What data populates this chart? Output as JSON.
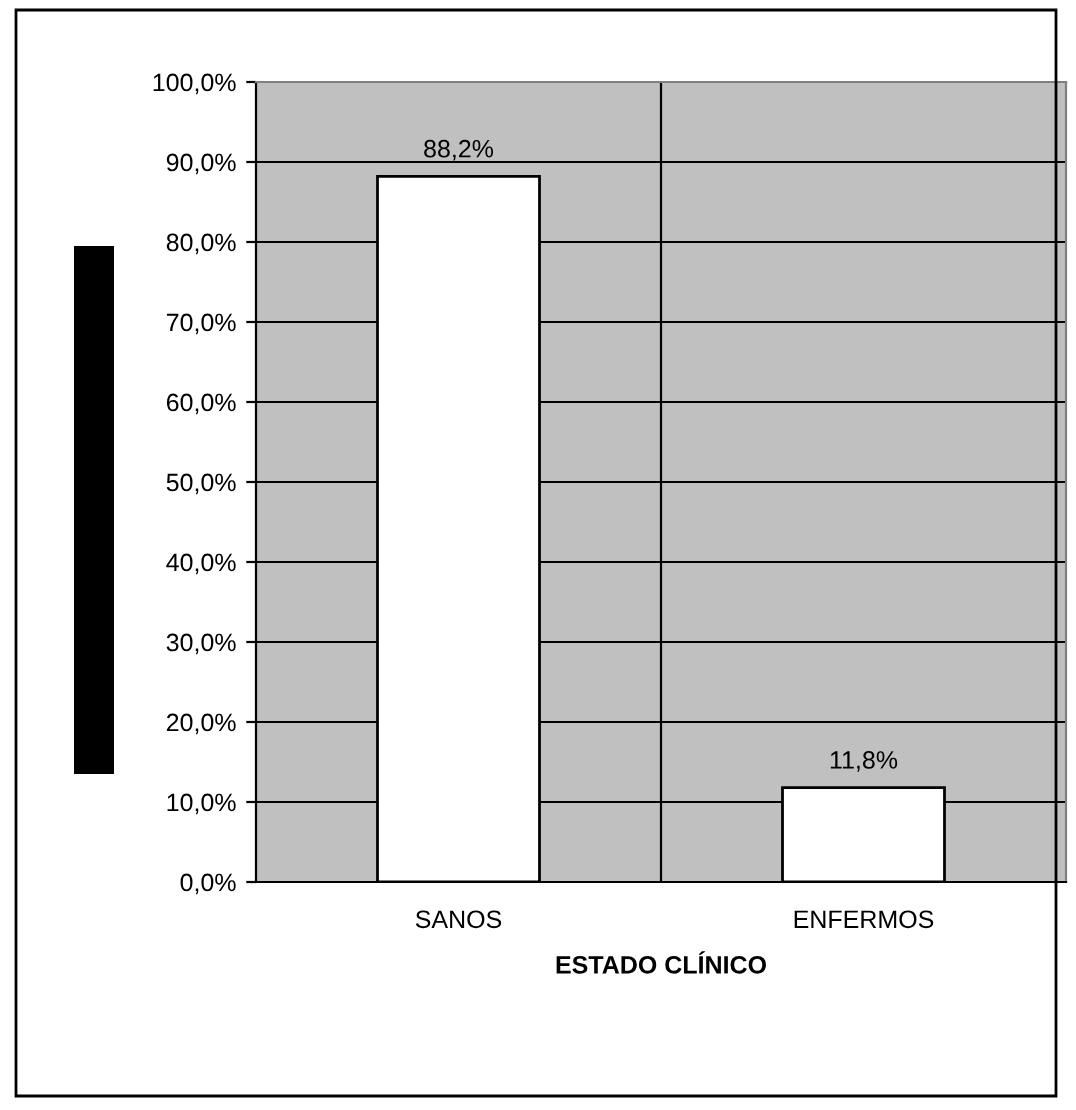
{
  "chart_data": {
    "type": "bar",
    "xlabel": "ESTADO CLÍNICO",
    "categories": [
      "SANOS",
      "ENFERMOS"
    ],
    "values": [
      88.2,
      11.8
    ],
    "value_labels": [
      "88,2%",
      "11,8%"
    ],
    "color": "#ffffff",
    "ylim": [
      0,
      100
    ],
    "yticks": [
      {
        "value": 0,
        "label": "0,0%"
      },
      {
        "value": 10,
        "label": "10,0%"
      },
      {
        "value": 20,
        "label": "20,0%"
      },
      {
        "value": 30,
        "label": "30,0%"
      },
      {
        "value": 40,
        "label": "40,0%"
      },
      {
        "value": 50,
        "label": "50,0%"
      },
      {
        "value": 60,
        "label": "60,0%"
      },
      {
        "value": 70,
        "label": "70,0%"
      },
      {
        "value": 80,
        "label": "80,0%"
      },
      {
        "value": 90,
        "label": "90,0%"
      },
      {
        "value": 100,
        "label": "100,0%"
      }
    ],
    "grid": true
  }
}
